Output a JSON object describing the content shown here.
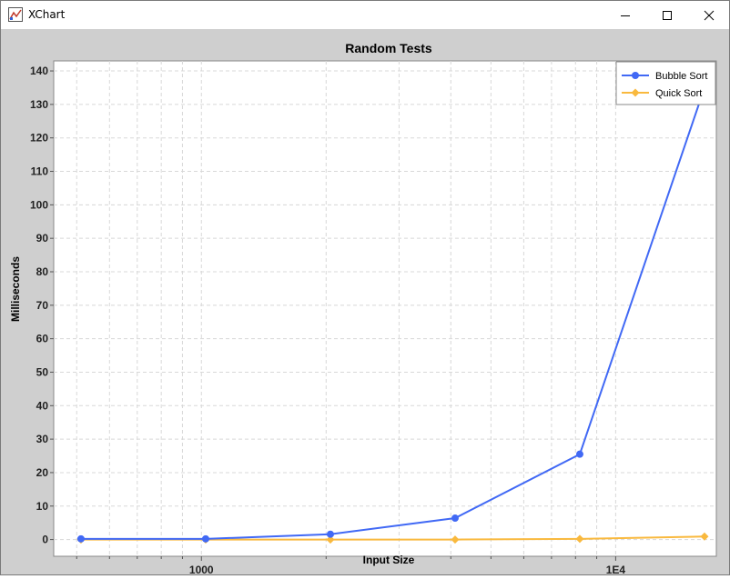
{
  "window": {
    "title": "XChart",
    "controls": [
      "minimize-icon",
      "maximize-icon",
      "close-icon"
    ]
  },
  "chart_data": {
    "type": "line",
    "title": "Random Tests",
    "xlabel": "Input Size",
    "ylabel": "Milliseconds",
    "x_scale": "log",
    "xlim": [
      440,
      17500
    ],
    "ylim": [
      -5,
      143
    ],
    "x_ticks": [
      {
        "value": 1000,
        "label": "1000"
      },
      {
        "value": 10000,
        "label": "1E4"
      }
    ],
    "y_ticks": [
      0,
      10,
      20,
      30,
      40,
      50,
      60,
      70,
      80,
      90,
      100,
      110,
      120,
      130,
      140
    ],
    "grid": true,
    "legend_position": "top-right",
    "series": [
      {
        "name": "Bubble Sort",
        "color": "#4169f5",
        "marker": "circle",
        "x": [
          512,
          1024,
          2048,
          4096,
          8192,
          16384
        ],
        "y": [
          0.2,
          0.2,
          1.6,
          6.4,
          25.5,
          135
        ]
      },
      {
        "name": "Quick Sort",
        "color": "#f9b93e",
        "marker": "diamond",
        "x": [
          512,
          1024,
          2048,
          4096,
          8192,
          16384
        ],
        "y": [
          0.0,
          0.0,
          0.0,
          0.0,
          0.2,
          0.9
        ]
      }
    ]
  }
}
